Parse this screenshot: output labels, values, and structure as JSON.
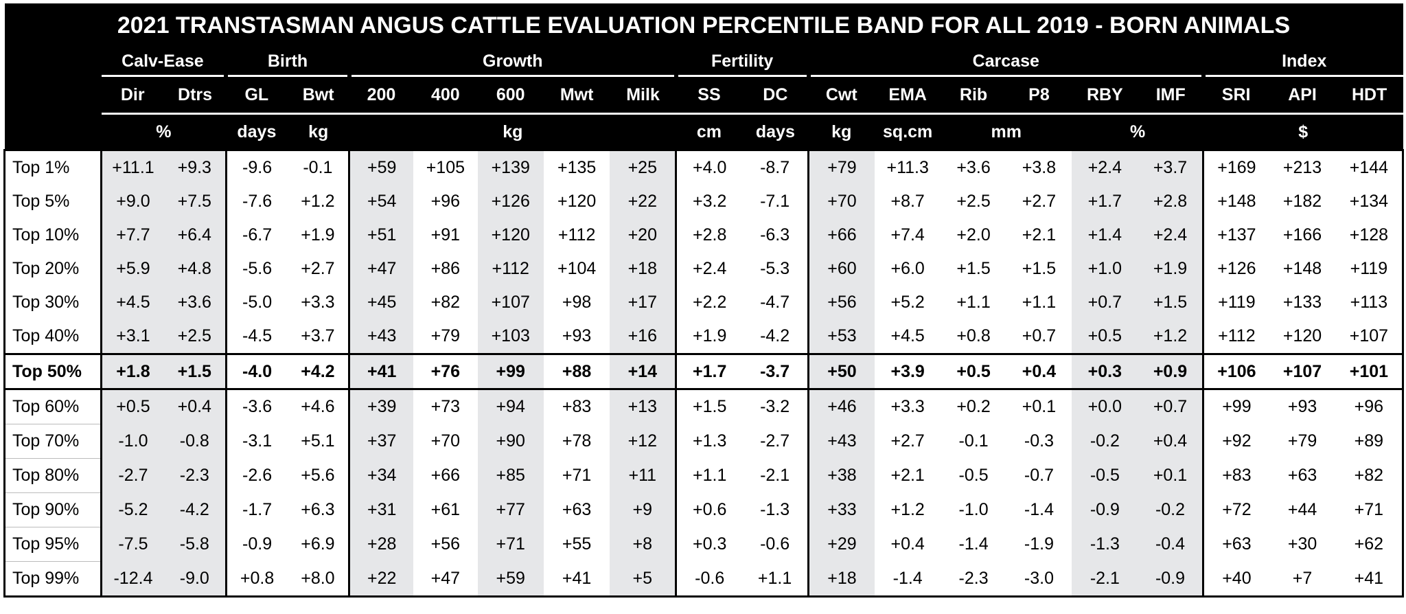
{
  "title": "2021 TRANSTASMAN ANGUS CATTLE EVALUATION PERCENTILE BAND FOR ALL 2019 - BORN ANIMALS",
  "groups": [
    {
      "label": "Calv-Ease",
      "span": 2
    },
    {
      "label": "Birth",
      "span": 2
    },
    {
      "label": "Growth",
      "span": 5
    },
    {
      "label": "Fertility",
      "span": 2
    },
    {
      "label": "Carcase",
      "span": 6
    },
    {
      "label": "Index",
      "span": 3
    }
  ],
  "traits": [
    "Dir",
    "Dtrs",
    "GL",
    "Bwt",
    "200",
    "400",
    "600",
    "Mwt",
    "Milk",
    "SS",
    "DC",
    "Cwt",
    "EMA",
    "Rib",
    "P8",
    "RBY",
    "IMF",
    "SRI",
    "API",
    "HDT"
  ],
  "units": [
    {
      "label": "%",
      "span": 2
    },
    {
      "label": "days",
      "span": 1
    },
    {
      "label": "kg",
      "span": 1
    },
    {
      "label": "kg",
      "span": 5
    },
    {
      "label": "cm",
      "span": 1
    },
    {
      "label": "days",
      "span": 1
    },
    {
      "label": "kg",
      "span": 1
    },
    {
      "label": "sq.cm",
      "span": 1
    },
    {
      "label": "mm",
      "span": 2
    },
    {
      "label": "%",
      "span": 2
    },
    {
      "label": "$",
      "span": 3
    }
  ],
  "rows": [
    {
      "label": "Top 1%",
      "values": [
        "+11.1",
        "+9.3",
        "-9.6",
        "-0.1",
        "+59",
        "+105",
        "+139",
        "+135",
        "+25",
        "+4.0",
        "-8.7",
        "+79",
        "+11.3",
        "+3.6",
        "+3.8",
        "+2.4",
        "+3.7",
        "+169",
        "+213",
        "+144"
      ]
    },
    {
      "label": "Top 5%",
      "values": [
        "+9.0",
        "+7.5",
        "-7.6",
        "+1.2",
        "+54",
        "+96",
        "+126",
        "+120",
        "+22",
        "+3.2",
        "-7.1",
        "+70",
        "+8.7",
        "+2.5",
        "+2.7",
        "+1.7",
        "+2.8",
        "+148",
        "+182",
        "+134"
      ]
    },
    {
      "label": "Top 10%",
      "values": [
        "+7.7",
        "+6.4",
        "-6.7",
        "+1.9",
        "+51",
        "+91",
        "+120",
        "+112",
        "+20",
        "+2.8",
        "-6.3",
        "+66",
        "+7.4",
        "+2.0",
        "+2.1",
        "+1.4",
        "+2.4",
        "+137",
        "+166",
        "+128"
      ]
    },
    {
      "label": "Top 20%",
      "values": [
        "+5.9",
        "+4.8",
        "-5.6",
        "+2.7",
        "+47",
        "+86",
        "+112",
        "+104",
        "+18",
        "+2.4",
        "-5.3",
        "+60",
        "+6.0",
        "+1.5",
        "+1.5",
        "+1.0",
        "+1.9",
        "+126",
        "+148",
        "+119"
      ]
    },
    {
      "label": "Top 30%",
      "values": [
        "+4.5",
        "+3.6",
        "-5.0",
        "+3.3",
        "+45",
        "+82",
        "+107",
        "+98",
        "+17",
        "+2.2",
        "-4.7",
        "+56",
        "+5.2",
        "+1.1",
        "+1.1",
        "+0.7",
        "+1.5",
        "+119",
        "+133",
        "+113"
      ]
    },
    {
      "label": "Top 40%",
      "values": [
        "+3.1",
        "+2.5",
        "-4.5",
        "+3.7",
        "+43",
        "+79",
        "+103",
        "+93",
        "+16",
        "+1.9",
        "-4.2",
        "+53",
        "+4.5",
        "+0.8",
        "+0.7",
        "+0.5",
        "+1.2",
        "+112",
        "+120",
        "+107"
      ]
    },
    {
      "label": "Top 50%",
      "values": [
        "+1.8",
        "+1.5",
        "-4.0",
        "+4.2",
        "+41",
        "+76",
        "+99",
        "+88",
        "+14",
        "+1.7",
        "-3.7",
        "+50",
        "+3.9",
        "+0.5",
        "+0.4",
        "+0.3",
        "+0.9",
        "+106",
        "+107",
        "+101"
      ]
    },
    {
      "label": "Top 60%",
      "values": [
        "+0.5",
        "+0.4",
        "-3.6",
        "+4.6",
        "+39",
        "+73",
        "+94",
        "+83",
        "+13",
        "+1.5",
        "-3.2",
        "+46",
        "+3.3",
        "+0.2",
        "+0.1",
        "+0.0",
        "+0.7",
        "+99",
        "+93",
        "+96"
      ]
    },
    {
      "label": "Top 70%",
      "values": [
        "-1.0",
        "-0.8",
        "-3.1",
        "+5.1",
        "+37",
        "+70",
        "+90",
        "+78",
        "+12",
        "+1.3",
        "-2.7",
        "+43",
        "+2.7",
        "-0.1",
        "-0.3",
        "-0.2",
        "+0.4",
        "+92",
        "+79",
        "+89"
      ]
    },
    {
      "label": "Top 80%",
      "values": [
        "-2.7",
        "-2.3",
        "-2.6",
        "+5.6",
        "+34",
        "+66",
        "+85",
        "+71",
        "+11",
        "+1.1",
        "-2.1",
        "+38",
        "+2.1",
        "-0.5",
        "-0.7",
        "-0.5",
        "+0.1",
        "+83",
        "+63",
        "+82"
      ]
    },
    {
      "label": "Top 90%",
      "values": [
        "-5.2",
        "-4.2",
        "-1.7",
        "+6.3",
        "+31",
        "+61",
        "+77",
        "+63",
        "+9",
        "+0.6",
        "-1.3",
        "+33",
        "+1.2",
        "-1.0",
        "-1.4",
        "-0.9",
        "-0.2",
        "+72",
        "+44",
        "+71"
      ]
    },
    {
      "label": "Top 95%",
      "values": [
        "-7.5",
        "-5.8",
        "-0.9",
        "+6.9",
        "+28",
        "+56",
        "+71",
        "+55",
        "+8",
        "+0.3",
        "-0.6",
        "+29",
        "+0.4",
        "-1.4",
        "-1.9",
        "-1.3",
        "-0.4",
        "+63",
        "+30",
        "+62"
      ]
    },
    {
      "label": "Top 99%",
      "values": [
        "-12.4",
        "-9.0",
        "+0.8",
        "+8.0",
        "+22",
        "+47",
        "+59",
        "+41",
        "+5",
        "-0.6",
        "+1.1",
        "+18",
        "-1.4",
        "-2.3",
        "-3.0",
        "-2.1",
        "-0.9",
        "+40",
        "+7",
        "+41"
      ]
    }
  ]
}
